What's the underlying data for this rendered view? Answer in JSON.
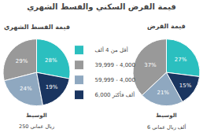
{
  "title": "قيمة القرض السكني والقسط الشهري",
  "legend": "center",
  "chart_data": [
    {
      "type": "pie",
      "title": "قيمة القسط الشهري",
      "categories": [
        "أقل من 4 ألف",
        "39,999 - 4,000",
        "59,999 - 4,000",
        "6,000 ألف فأكثر"
      ],
      "values": [
        28,
        29,
        24,
        19
      ],
      "value_labels": [
        "28%",
        "29%",
        "24%",
        "19%"
      ],
      "colors": [
        "#2bbfbf",
        "#999999",
        "#8fa8c0",
        "#1a3560"
      ],
      "data_labels": true,
      "annotations": [
        "الوسيط",
        "250 ريال عماني"
      ]
    },
    {
      "type": "pie",
      "title": "قيمة القرض",
      "categories": [
        "أقل من 4 ألف",
        "39,999 - 4,000",
        "59,999 - 4,000",
        "6,000 ألف فأكثر"
      ],
      "values": [
        27,
        37,
        21,
        15
      ],
      "value_labels": [
        "27%",
        "37%",
        "21%",
        "15%"
      ],
      "colors": [
        "#2bbfbf",
        "#999999",
        "#8fa8c0",
        "#1a3560"
      ],
      "data_labels": true,
      "annotations": [
        "الوسيط",
        "6 ألف ريال عماني"
      ]
    }
  ]
}
